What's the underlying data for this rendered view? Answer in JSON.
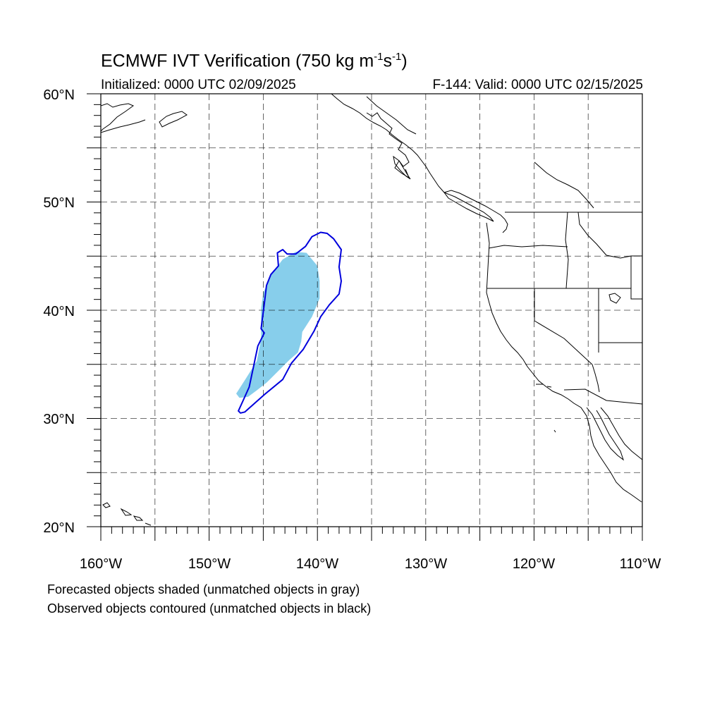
{
  "title": {
    "prefix": "ECMWF IVT Verification (750 kg m",
    "exp1": "-1",
    "mid": "s",
    "exp2": "-1",
    "suffix": ")"
  },
  "subtitle": {
    "initialized": "Initialized: 0000 UTC 02/09/2025",
    "valid": "F-144: Valid: 0000 UTC 02/15/2025"
  },
  "map": {
    "lon_range": [
      -160,
      -110
    ],
    "lat_range": [
      20,
      60
    ],
    "lon_labels": [
      "160°W",
      "150°W",
      "140°W",
      "130°W",
      "120°W",
      "110°W"
    ],
    "lat_labels": [
      "60°N",
      "50°N",
      "40°N",
      "30°N",
      "20°N"
    ],
    "colors": {
      "forecast_fill": "#87ceeb",
      "observed_contour": "#0000dd",
      "coastline": "#000000",
      "grid": "#000000"
    }
  },
  "objects": {
    "forecast_shaded": {
      "type": "matched",
      "outline_lonlat": [
        [
          -147.2,
          31.9
        ],
        [
          -146.4,
          32.0
        ],
        [
          -145.6,
          32.6
        ],
        [
          -144.7,
          33.3
        ],
        [
          -143.6,
          34.4
        ],
        [
          -142.6,
          35.4
        ],
        [
          -141.8,
          36.1
        ],
        [
          -141.5,
          37.1
        ],
        [
          -141.4,
          38.0
        ],
        [
          -140.5,
          39.4
        ],
        [
          -139.8,
          41.1
        ],
        [
          -139.8,
          42.7
        ],
        [
          -140.0,
          44.1
        ],
        [
          -141.0,
          45.3
        ],
        [
          -142.0,
          45.4
        ],
        [
          -143.2,
          44.7
        ],
        [
          -144.2,
          43.4
        ],
        [
          -145.0,
          41.6
        ],
        [
          -145.2,
          40.2
        ],
        [
          -145.2,
          37.3
        ],
        [
          -145.6,
          35.3
        ],
        [
          -146.6,
          33.7
        ],
        [
          -147.5,
          32.3
        ]
      ]
    },
    "observed_contour": {
      "type": "matched",
      "outline_lonlat": [
        [
          -147.1,
          30.5
        ],
        [
          -146.7,
          30.6
        ],
        [
          -145.8,
          31.4
        ],
        [
          -144.9,
          32.2
        ],
        [
          -143.2,
          33.6
        ],
        [
          -142.4,
          35.1
        ],
        [
          -141.3,
          36.4
        ],
        [
          -140.3,
          38.1
        ],
        [
          -139.7,
          39.4
        ],
        [
          -138.9,
          40.5
        ],
        [
          -138.0,
          41.5
        ],
        [
          -137.8,
          42.7
        ],
        [
          -138.0,
          44.0
        ],
        [
          -137.8,
          45.6
        ],
        [
          -138.5,
          46.6
        ],
        [
          -139.1,
          47.1
        ],
        [
          -139.7,
          47.2
        ],
        [
          -140.5,
          46.8
        ],
        [
          -141.1,
          45.9
        ],
        [
          -142.0,
          45.2
        ],
        [
          -142.8,
          45.2
        ],
        [
          -143.2,
          45.6
        ],
        [
          -143.7,
          45.3
        ],
        [
          -143.6,
          44.1
        ],
        [
          -144.3,
          43.3
        ],
        [
          -144.7,
          42.3
        ],
        [
          -144.9,
          40.6
        ],
        [
          -145.2,
          38.3
        ],
        [
          -144.9,
          37.9
        ],
        [
          -145.5,
          36.7
        ],
        [
          -145.9,
          34.8
        ],
        [
          -146.3,
          32.9
        ],
        [
          -146.8,
          31.8
        ],
        [
          -147.3,
          30.7
        ]
      ]
    }
  },
  "footnotes": {
    "line1": "Forecasted objects shaded (unmatched objects in gray)",
    "line2": "Observed objects contoured (unmatched objects in black)"
  }
}
